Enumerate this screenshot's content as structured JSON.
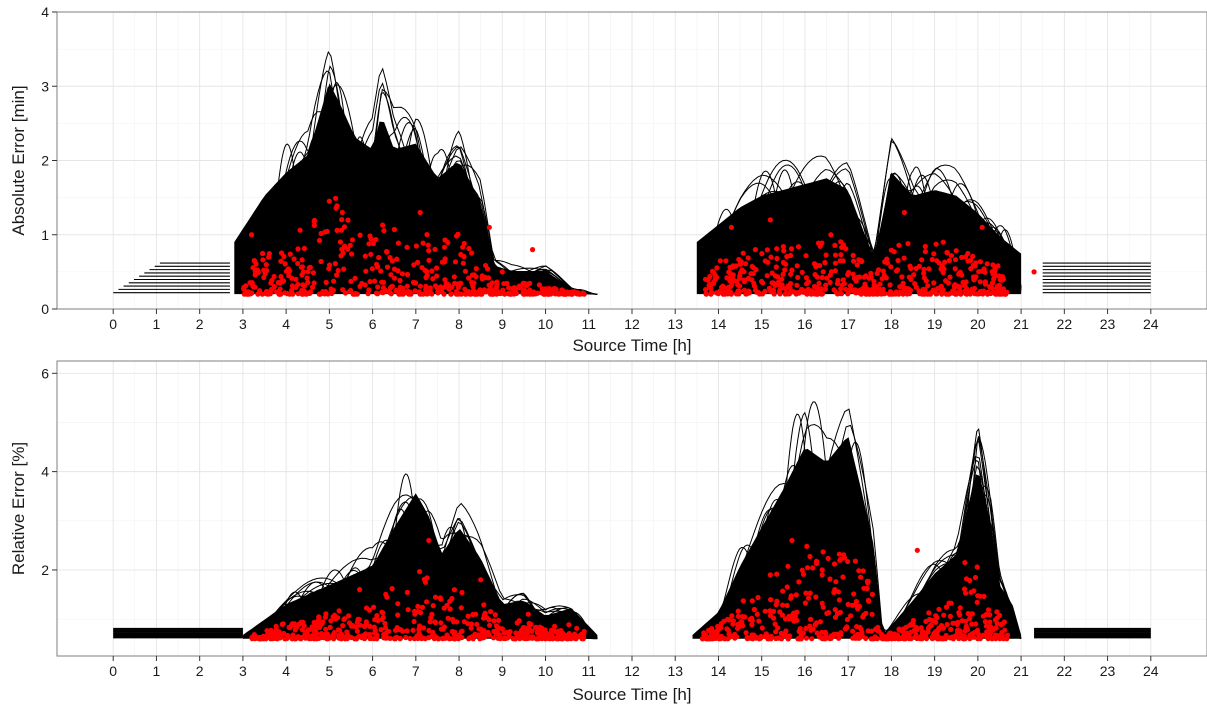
{
  "chart_data": [
    {
      "type": "line",
      "xlabel": "Source Time [h]",
      "ylabel": "Absolute Error [min]",
      "xlim": [
        -1.3,
        25.3
      ],
      "ylim": [
        0,
        4
      ],
      "x_ticks": [
        0,
        1,
        2,
        3,
        4,
        5,
        6,
        7,
        8,
        9,
        10,
        11,
        12,
        13,
        14,
        15,
        16,
        17,
        18,
        19,
        20,
        21,
        22,
        23,
        24
      ],
      "y_ticks": [
        0,
        1,
        2,
        3,
        4
      ],
      "grid": true,
      "legend": "none",
      "series": [
        {
          "color": "#000000",
          "envelope": [
            [
              2.8,
              1.1
            ],
            [
              3.5,
              1.9
            ],
            [
              4.0,
              2.3
            ],
            [
              4.5,
              2.6
            ],
            [
              5.0,
              3.85
            ],
            [
              5.3,
              3.4
            ],
            [
              5.6,
              2.9
            ],
            [
              6.0,
              2.7
            ],
            [
              6.2,
              3.3
            ],
            [
              6.5,
              2.7
            ],
            [
              7.0,
              2.8
            ],
            [
              7.5,
              2.2
            ],
            [
              8.0,
              2.5
            ],
            [
              8.5,
              1.8
            ],
            [
              8.8,
              0.7
            ],
            [
              9.2,
              0.6
            ],
            [
              10.0,
              0.6
            ],
            [
              10.6,
              0.3
            ],
            [
              11.2,
              0.2
            ]
          ]
        },
        {
          "color": "#000000",
          "envelope": [
            [
              13.5,
              1.1
            ],
            [
              14.0,
              1.4
            ],
            [
              14.5,
              1.7
            ],
            [
              15.0,
              1.9
            ],
            [
              15.5,
              2.0
            ],
            [
              16.0,
              2.1
            ],
            [
              16.5,
              2.2
            ],
            [
              17.0,
              2.0
            ],
            [
              17.3,
              1.4
            ],
            [
              17.6,
              0.8
            ],
            [
              18.0,
              2.3
            ],
            [
              18.5,
              1.9
            ],
            [
              19.0,
              2.0
            ],
            [
              19.5,
              1.9
            ],
            [
              20.0,
              1.6
            ],
            [
              20.5,
              1.2
            ],
            [
              21.0,
              0.9
            ]
          ]
        },
        {
          "color": "#000000",
          "flat": [
            [
              0.0,
              2.7,
              0.62
            ],
            [
              21.5,
              24.0,
              0.62
            ]
          ]
        }
      ],
      "points": {
        "color": "#ff0000",
        "highlights": [
          [
            9.7,
            0.8
          ],
          [
            8.7,
            1.1
          ],
          [
            3.2,
            1.0
          ],
          [
            4.4,
            0.5
          ],
          [
            5.3,
            1.3
          ],
          [
            7.1,
            1.3
          ],
          [
            9.0,
            0.5
          ],
          [
            10.6,
            0.2
          ],
          [
            14.3,
            1.1
          ],
          [
            15.2,
            1.2
          ],
          [
            16.6,
            1.0
          ],
          [
            18.3,
            1.3
          ],
          [
            20.1,
            1.1
          ],
          [
            21.3,
            0.5
          ],
          [
            19.2,
            0.9
          ],
          [
            13.7,
            0.4
          ]
        ]
      }
    },
    {
      "type": "line",
      "xlabel": "Source Time [h]",
      "ylabel": "Relative Error [%]",
      "xlim": [
        -1.3,
        25.3
      ],
      "ylim": [
        0.25,
        6.25
      ],
      "x_ticks": [
        0,
        1,
        2,
        3,
        4,
        5,
        6,
        7,
        8,
        9,
        10,
        11,
        12,
        13,
        14,
        15,
        16,
        17,
        18,
        19,
        20,
        21,
        22,
        23,
        24
      ],
      "y_ticks": [
        2,
        4,
        6
      ],
      "grid": true,
      "legend": "none",
      "series": [
        {
          "color": "#000000",
          "envelope": [
            [
              3.0,
              0.7
            ],
            [
              4.0,
              1.5
            ],
            [
              5.0,
              2.0
            ],
            [
              6.0,
              2.5
            ],
            [
              6.5,
              3.5
            ],
            [
              7.0,
              4.4
            ],
            [
              7.3,
              3.8
            ],
            [
              7.6,
              2.8
            ],
            [
              8.0,
              3.5
            ],
            [
              8.5,
              2.7
            ],
            [
              9.0,
              1.5
            ],
            [
              9.5,
              1.6
            ],
            [
              10.0,
              1.2
            ],
            [
              10.6,
              1.4
            ],
            [
              11.2,
              0.7
            ]
          ]
        },
        {
          "color": "#000000",
          "envelope": [
            [
              13.4,
              0.7
            ],
            [
              14.0,
              1.3
            ],
            [
              14.5,
              2.5
            ],
            [
              15.0,
              3.5
            ],
            [
              15.5,
              4.5
            ],
            [
              16.0,
              5.6
            ],
            [
              16.5,
              5.2
            ],
            [
              17.0,
              5.9
            ],
            [
              17.3,
              4.5
            ],
            [
              17.6,
              3.0
            ],
            [
              17.8,
              0.7
            ],
            [
              18.5,
              1.6
            ],
            [
              19.0,
              2.3
            ],
            [
              19.5,
              2.8
            ],
            [
              20.0,
              5.1
            ],
            [
              20.3,
              3.5
            ],
            [
              20.5,
              2.0
            ],
            [
              20.8,
              1.5
            ],
            [
              21.0,
              0.7
            ]
          ]
        },
        {
          "color": "#000000",
          "flat": [
            [
              0.0,
              3.0,
              0.8
            ],
            [
              21.3,
              24.0,
              0.8
            ]
          ]
        }
      ],
      "points": {
        "color": "#ff0000",
        "highlights": [
          [
            7.3,
            2.6
          ],
          [
            8.5,
            1.8
          ],
          [
            15.7,
            2.6
          ],
          [
            18.6,
            2.4
          ],
          [
            19.7,
            2.15
          ],
          [
            16.4,
            1.9
          ],
          [
            17.0,
            1.3
          ],
          [
            5.7,
            1.6
          ],
          [
            9.6,
            1.1
          ],
          [
            15.2,
            1.9
          ],
          [
            19.1,
            1.2
          ]
        ]
      }
    }
  ]
}
